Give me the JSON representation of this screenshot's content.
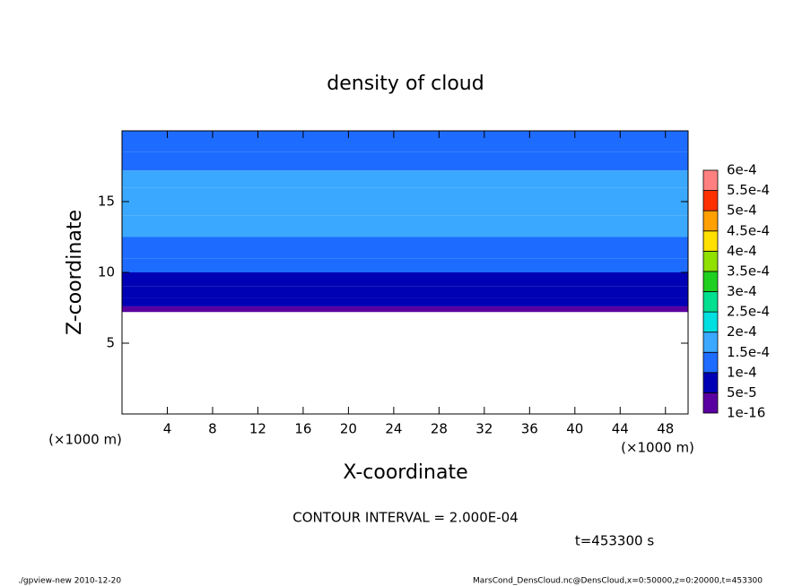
{
  "chart_data": {
    "type": "contour",
    "title": "density of cloud",
    "xlabel": "X-coordinate",
    "ylabel": "Z-coordinate",
    "x_unit": "(×1000 m)",
    "y_unit": "(×1000 m)",
    "xlim": [
      0,
      50
    ],
    "ylim": [
      0,
      20
    ],
    "xticks": [
      4,
      8,
      12,
      16,
      20,
      24,
      28,
      32,
      36,
      40,
      44,
      48
    ],
    "yticks": [
      5,
      10,
      15
    ],
    "z_edges": [
      7.2,
      7.6,
      8.2,
      9,
      10,
      11,
      12.5,
      14,
      16,
      17.2,
      18.5,
      20
    ],
    "values": [
      2e-05,
      6e-05,
      7e-05,
      9e-05,
      0.00011,
      0.00013,
      0.00016,
      0.00016,
      0.00016,
      0.00013,
      0.00012
    ],
    "levels": [
      {
        "value": 1e-16,
        "label": "1e-16"
      },
      {
        "value": 5e-05,
        "label": "5e-5"
      },
      {
        "value": 0.0001,
        "label": "1e-4"
      },
      {
        "value": 0.00015,
        "label": "1.5e-4"
      },
      {
        "value": 0.0002,
        "label": "2e-4"
      },
      {
        "value": 0.00025,
        "label": "2.5e-4"
      },
      {
        "value": 0.0003,
        "label": "3e-4"
      },
      {
        "value": 0.00035,
        "label": "3.5e-4"
      },
      {
        "value": 0.0004,
        "label": "4e-4"
      },
      {
        "value": 0.00045,
        "label": "4.5e-4"
      },
      {
        "value": 0.0005,
        "label": "5e-4"
      },
      {
        "value": 0.00055,
        "label": "5.5e-4"
      },
      {
        "value": 0.0006,
        "label": "6e-4"
      }
    ],
    "colors": [
      "#5a00a0",
      "#0000b4",
      "#1e6cff",
      "#3aa8ff",
      "#00e0e0",
      "#00e090",
      "#20d020",
      "#90e000",
      "#ffe000",
      "#ffa000",
      "#ff3000",
      "#ff8080"
    ],
    "contour_interval": "CONTOUR INTERVAL = 2.000E-04",
    "time": "t=453300 s",
    "footer_left": "./gpview-new  2010-12-20",
    "footer_right": "MarsCond_DensCloud.nc@DensCloud,x=0:50000,z=0:20000,t=453300"
  }
}
